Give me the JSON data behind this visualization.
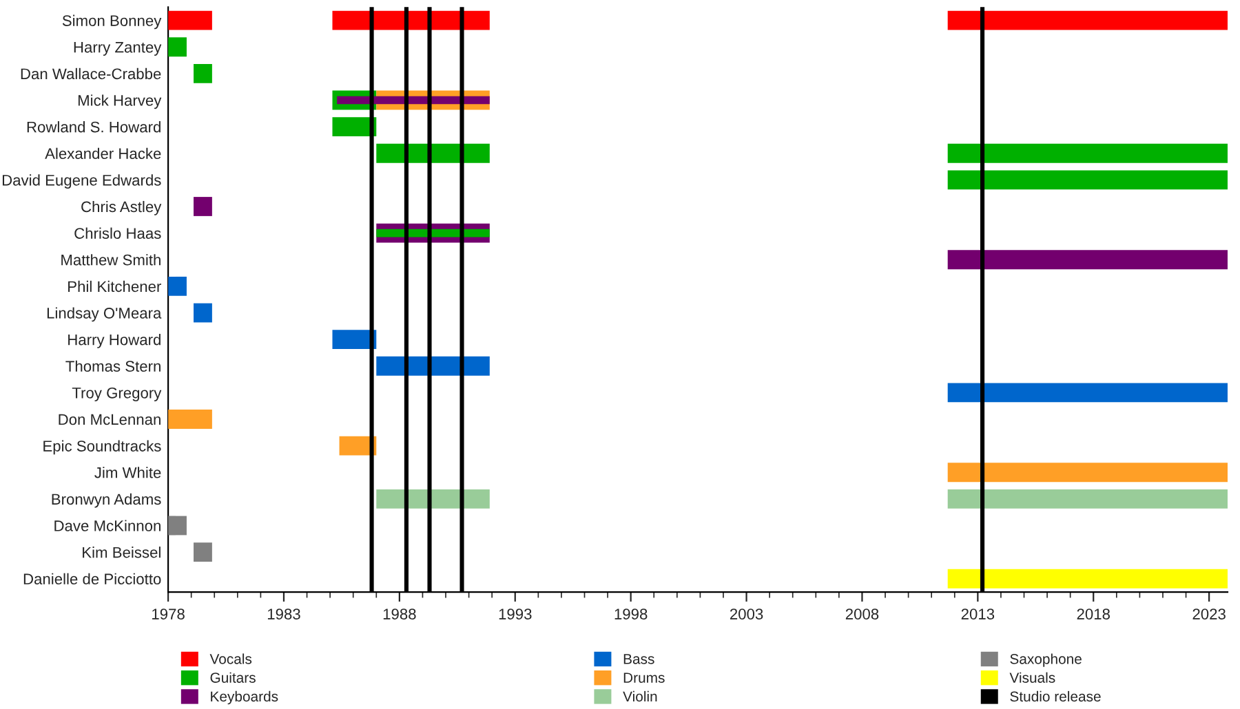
{
  "chart_data": {
    "type": "bar",
    "orientation": "horizontal",
    "categories": [
      "Simon Bonney",
      "Harry Zantey",
      "Dan Wallace-Crabbe",
      "Mick Harvey",
      "Rowland S. Howard",
      "Alexander Hacke",
      "David Eugene Edwards",
      "Chris Astley",
      "Chrislo Haas",
      "Matthew Smith",
      "Phil Kitchener",
      "Lindsay O'Meara",
      "Harry Howard",
      "Thomas Stern",
      "Troy Gregory",
      "Don McLennan",
      "Epic Soundtracks",
      "Jim White",
      "Bronwyn Adams",
      "Dave McKinnon",
      "Kim Beissel",
      "Danielle de Picciotto"
    ],
    "series": [
      {
        "name": "Vocals",
        "color": "#ff0000",
        "base": [
          1978,
          null,
          null,
          null,
          null,
          null,
          null,
          null,
          null,
          null,
          null,
          null,
          null,
          null,
          null,
          null,
          null,
          null,
          null,
          null,
          null,
          null
        ],
        "values": [
          1.9,
          null,
          null,
          null,
          null,
          null,
          null,
          null,
          null,
          null,
          null,
          null,
          null,
          null,
          null,
          null,
          null,
          null,
          null,
          null,
          null,
          null
        ]
      },
      {
        "name": "Guitars",
        "color": "#00b000",
        "base": [
          null,
          1978,
          1979.1,
          1985.1,
          1985.1,
          1987.0,
          2011.7,
          null,
          null,
          null,
          null,
          null,
          null,
          null,
          null,
          null,
          null,
          null,
          null,
          null,
          null,
          null
        ],
        "values": [
          null,
          0.8,
          0.8,
          1.9,
          1.9,
          4.9,
          12.1,
          null,
          null,
          null,
          null,
          null,
          null,
          null,
          null,
          null,
          null,
          null,
          null,
          null,
          null,
          null
        ]
      },
      {
        "color": "#ff9f26",
        "base": [
          null,
          null,
          null,
          1987.0,
          null,
          null,
          null,
          null,
          null,
          null,
          null,
          null,
          null,
          null,
          null,
          null,
          null,
          null,
          null,
          null,
          null,
          null
        ],
        "values": [
          null,
          null,
          null,
          4.9,
          null,
          null,
          null,
          null,
          null,
          null,
          null,
          null,
          null,
          null,
          null,
          null,
          null,
          null,
          null,
          null,
          null,
          null
        ]
      },
      {
        "name": "Keyboards",
        "color": "#73006e",
        "base": [
          null,
          null,
          null,
          1985.3,
          null,
          null,
          null,
          1979.1,
          1987.0,
          2011.7,
          null,
          null,
          null,
          null,
          null,
          null,
          null,
          null,
          null,
          null,
          null,
          null
        ],
        "values": [
          null,
          null,
          null,
          6.6,
          null,
          null,
          null,
          0.8,
          4.9,
          12.1,
          null,
          null,
          null,
          null,
          null,
          null,
          null,
          null,
          null,
          null,
          null,
          null
        ]
      },
      {
        "name": "Bass",
        "color": "#0066cc",
        "base": [
          null,
          null,
          null,
          null,
          null,
          null,
          null,
          null,
          null,
          null,
          1978,
          1979.1,
          1985.1,
          1987.0,
          2011.7,
          null,
          null,
          null,
          null,
          null,
          null,
          null
        ],
        "values": [
          null,
          null,
          null,
          null,
          null,
          null,
          null,
          null,
          null,
          null,
          0.8,
          0.8,
          1.9,
          4.9,
          12.1,
          null,
          null,
          null,
          null,
          null,
          null,
          null
        ]
      },
      {
        "name": "Drums",
        "color": "#ff9f26",
        "base": [
          null,
          null,
          null,
          null,
          null,
          null,
          null,
          null,
          null,
          null,
          null,
          null,
          null,
          null,
          null,
          1978,
          1985.4,
          2011.7,
          null,
          null,
          null,
          null
        ],
        "values": [
          null,
          null,
          null,
          null,
          null,
          null,
          null,
          null,
          null,
          null,
          null,
          null,
          null,
          null,
          null,
          1.9,
          1.6,
          12.1,
          null,
          null,
          null,
          null
        ]
      },
      {
        "name": "Violin",
        "color": "#99cc99",
        "base": [
          null,
          null,
          null,
          null,
          null,
          null,
          null,
          null,
          null,
          null,
          null,
          null,
          null,
          null,
          null,
          null,
          null,
          null,
          1987.0,
          null,
          null,
          null
        ],
        "values": [
          null,
          null,
          null,
          null,
          null,
          null,
          null,
          null,
          null,
          null,
          null,
          null,
          null,
          null,
          null,
          null,
          null,
          null,
          4.9,
          null,
          null,
          null
        ]
      },
      {
        "name": "Saxophone",
        "color": "#808080",
        "base": [
          null,
          null,
          null,
          null,
          null,
          null,
          null,
          null,
          null,
          null,
          null,
          null,
          null,
          null,
          null,
          null,
          null,
          null,
          null,
          1978,
          1979.1,
          null
        ],
        "values": [
          null,
          null,
          null,
          null,
          null,
          null,
          null,
          null,
          null,
          null,
          null,
          null,
          null,
          null,
          null,
          null,
          null,
          null,
          null,
          0.8,
          0.8,
          null
        ]
      },
      {
        "name": "Visuals",
        "color": "#ffff00",
        "base": [
          null,
          null,
          null,
          null,
          null,
          null,
          null,
          null,
          null,
          null,
          null,
          null,
          null,
          null,
          null,
          null,
          null,
          null,
          null,
          null,
          null,
          2011.7
        ],
        "values": [
          null,
          null,
          null,
          null,
          null,
          null,
          null,
          null,
          null,
          null,
          null,
          null,
          null,
          null,
          null,
          null,
          null,
          null,
          null,
          null,
          null,
          12.1
        ]
      },
      {
        "color": "#ff0000",
        "base": [
          1985.1,
          null,
          null,
          null,
          null,
          null,
          null,
          null,
          null,
          null,
          null,
          null,
          null,
          null,
          null,
          null,
          null,
          null,
          null,
          null,
          null,
          null
        ],
        "values": [
          6.8,
          null,
          null,
          null,
          null,
          null,
          null,
          null,
          null,
          null,
          null,
          null,
          null,
          null,
          null,
          null,
          null,
          null,
          null,
          null,
          null,
          null
        ]
      },
      {
        "color": "#ff0000",
        "base": [
          2011.7,
          null,
          null,
          null,
          null,
          null,
          null,
          null,
          null,
          null,
          null,
          null,
          null,
          null,
          null,
          null,
          null,
          null,
          null,
          null,
          null,
          null
        ],
        "values": [
          12.1,
          null,
          null,
          null,
          null,
          null,
          null,
          null,
          null,
          null,
          null,
          null,
          null,
          null,
          null,
          null,
          null,
          null,
          null,
          null,
          null,
          null
        ]
      },
      {
        "color": "#00b000",
        "base": [
          null,
          null,
          null,
          null,
          null,
          2011.7,
          null,
          null,
          1987.0,
          null,
          null,
          null,
          null,
          null,
          null,
          null,
          null,
          null,
          null,
          null,
          null,
          null
        ],
        "values": [
          null,
          null,
          null,
          null,
          null,
          12.1,
          null,
          null,
          4.9,
          null,
          null,
          null,
          null,
          null,
          null,
          null,
          null,
          null,
          null,
          null,
          null,
          null
        ]
      },
      {
        "color": "#99cc99",
        "base": [
          null,
          null,
          null,
          null,
          null,
          null,
          null,
          null,
          null,
          null,
          null,
          null,
          null,
          null,
          null,
          null,
          null,
          null,
          2011.7,
          null,
          null,
          null
        ],
        "values": [
          null,
          null,
          null,
          null,
          null,
          null,
          null,
          null,
          null,
          null,
          null,
          null,
          null,
          null,
          null,
          null,
          null,
          null,
          12.1,
          null,
          null,
          null
        ]
      }
    ],
    "ref_lines": [
      {
        "axis": "x",
        "value": 1986.8,
        "label": "Studio release",
        "color": "#000000"
      },
      {
        "axis": "x",
        "value": 1988.3,
        "color": "#000000"
      },
      {
        "axis": "x",
        "value": 1989.3,
        "color": "#000000"
      },
      {
        "axis": "x",
        "value": 1990.7,
        "color": "#000000"
      },
      {
        "axis": "x",
        "value": 2013.2,
        "color": "#000000"
      }
    ],
    "xlim": [
      1978,
      2023.8
    ],
    "xticks": [
      1978,
      {
        "value": 1979,
        "label": null
      },
      {
        "value": 1980,
        "label": null
      },
      {
        "value": 1981,
        "label": null
      },
      {
        "value": 1982,
        "label": null
      },
      1983,
      {
        "value": 1984,
        "label": null
      },
      {
        "value": 1985,
        "label": null
      },
      {
        "value": 1986,
        "label": null
      },
      {
        "value": 1987,
        "label": null
      },
      1988,
      {
        "value": 1989,
        "label": null
      },
      {
        "value": 1990,
        "label": null
      },
      {
        "value": 1991,
        "label": null
      },
      {
        "value": 1992,
        "label": null
      },
      1993,
      {
        "value": 1994,
        "label": null
      },
      {
        "value": 1995,
        "label": null
      },
      {
        "value": 1996,
        "label": null
      },
      {
        "value": 1997,
        "label": null
      },
      1998,
      {
        "value": 1999,
        "label": null
      },
      {
        "value": 2000,
        "label": null
      },
      {
        "value": 2001,
        "label": null
      },
      {
        "value": 2002,
        "label": null
      },
      2003,
      {
        "value": 2004,
        "label": null
      },
      {
        "value": 2005,
        "label": null
      },
      {
        "value": 2006,
        "label": null
      },
      {
        "value": 2007,
        "label": null
      },
      2008,
      {
        "value": 2009,
        "label": null
      },
      {
        "value": 2010,
        "label": null
      },
      {
        "value": 2011,
        "label": null
      },
      {
        "value": 2012,
        "label": null
      },
      2013,
      {
        "value": 2014,
        "label": null
      },
      {
        "value": 2015,
        "label": null
      },
      {
        "value": 2016,
        "label": null
      },
      {
        "value": 2017,
        "label": null
      },
      2018,
      {
        "value": 2019,
        "label": null
      },
      {
        "value": 2020,
        "label": null
      },
      {
        "value": 2021,
        "label": null
      },
      {
        "value": 2022,
        "label": null
      },
      2023
    ],
    "grid": false,
    "legend": "bottom"
  }
}
